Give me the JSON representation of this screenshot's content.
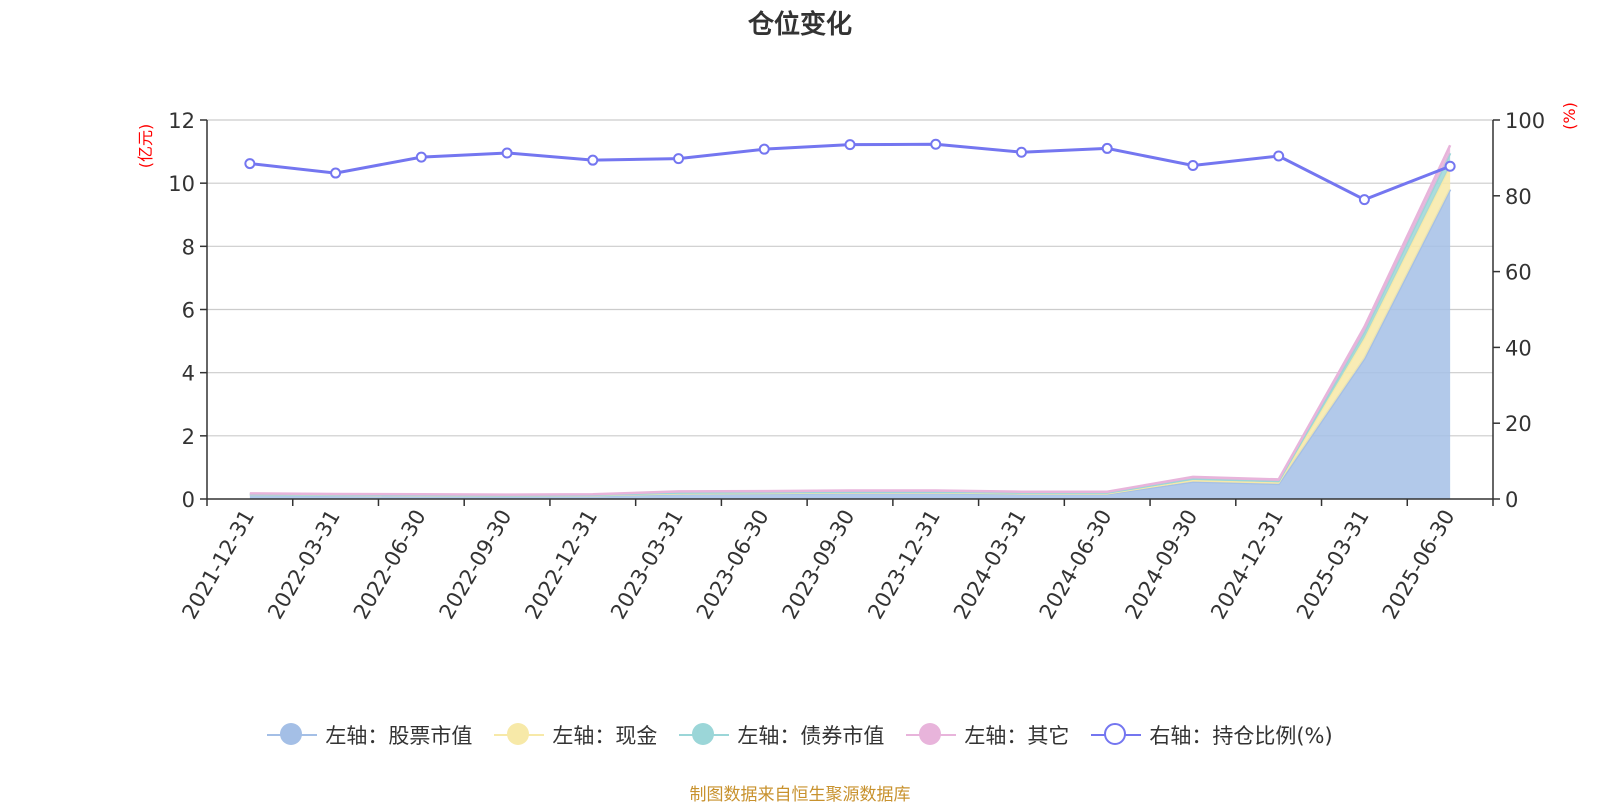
{
  "title": "仓位变化",
  "source_note": "制图数据来自恒生聚源数据库",
  "chart_data": {
    "type": "area",
    "categories": [
      "2021-12-31",
      "2022-03-31",
      "2022-06-30",
      "2022-09-30",
      "2022-12-31",
      "2023-03-31",
      "2023-06-30",
      "2023-09-30",
      "2023-12-31",
      "2024-03-31",
      "2024-06-30",
      "2024-09-30",
      "2024-12-31",
      "2025-03-31",
      "2025-06-30"
    ],
    "left_axis": {
      "unit": "(亿元)",
      "ylim": [
        0,
        12
      ],
      "ticks": [
        0,
        2,
        4,
        6,
        8,
        10,
        12
      ]
    },
    "right_axis": {
      "unit": "(%)",
      "ylim": [
        0,
        100
      ],
      "ticks": [
        0,
        20,
        40,
        60,
        80,
        100
      ]
    },
    "stacked": true,
    "grid": true,
    "legend_position": "bottom",
    "series": [
      {
        "name": "左轴：股票市值",
        "axis": "left",
        "type": "area",
        "color": "#a4bfe6",
        "values": [
          0.14,
          0.12,
          0.11,
          0.1,
          0.11,
          0.16,
          0.17,
          0.19,
          0.19,
          0.16,
          0.16,
          0.55,
          0.48,
          4.45,
          9.8
        ]
      },
      {
        "name": "左轴：现金",
        "axis": "left",
        "type": "area",
        "color": "#f7e9a8",
        "values": [
          0.01,
          0.01,
          0.01,
          0.01,
          0.01,
          0.02,
          0.02,
          0.02,
          0.02,
          0.02,
          0.02,
          0.05,
          0.05,
          0.65,
          0.75
        ]
      },
      {
        "name": "左轴：债券市值",
        "axis": "left",
        "type": "area",
        "color": "#9bd6d8",
        "values": [
          0.01,
          0.01,
          0.01,
          0.01,
          0.01,
          0.02,
          0.02,
          0.02,
          0.02,
          0.02,
          0.02,
          0.05,
          0.04,
          0.2,
          0.4
        ]
      },
      {
        "name": "左轴：其它",
        "axis": "left",
        "type": "area",
        "color": "#e8b4db",
        "values": [
          0.02,
          0.02,
          0.02,
          0.02,
          0.02,
          0.04,
          0.04,
          0.04,
          0.04,
          0.03,
          0.03,
          0.05,
          0.05,
          0.15,
          0.25
        ]
      },
      {
        "name": "右轴：持仓比例(%)",
        "axis": "right",
        "type": "line",
        "color": "#7476f0",
        "values": [
          88.5,
          86.0,
          90.2,
          91.3,
          89.4,
          89.8,
          92.3,
          93.5,
          93.6,
          91.5,
          92.5,
          88.0,
          90.5,
          79.0,
          87.8
        ]
      }
    ]
  },
  "legend_icons": [
    "filled-circle-icon",
    "filled-circle-icon",
    "filled-circle-icon",
    "filled-circle-icon",
    "hollow-circle-icon"
  ]
}
